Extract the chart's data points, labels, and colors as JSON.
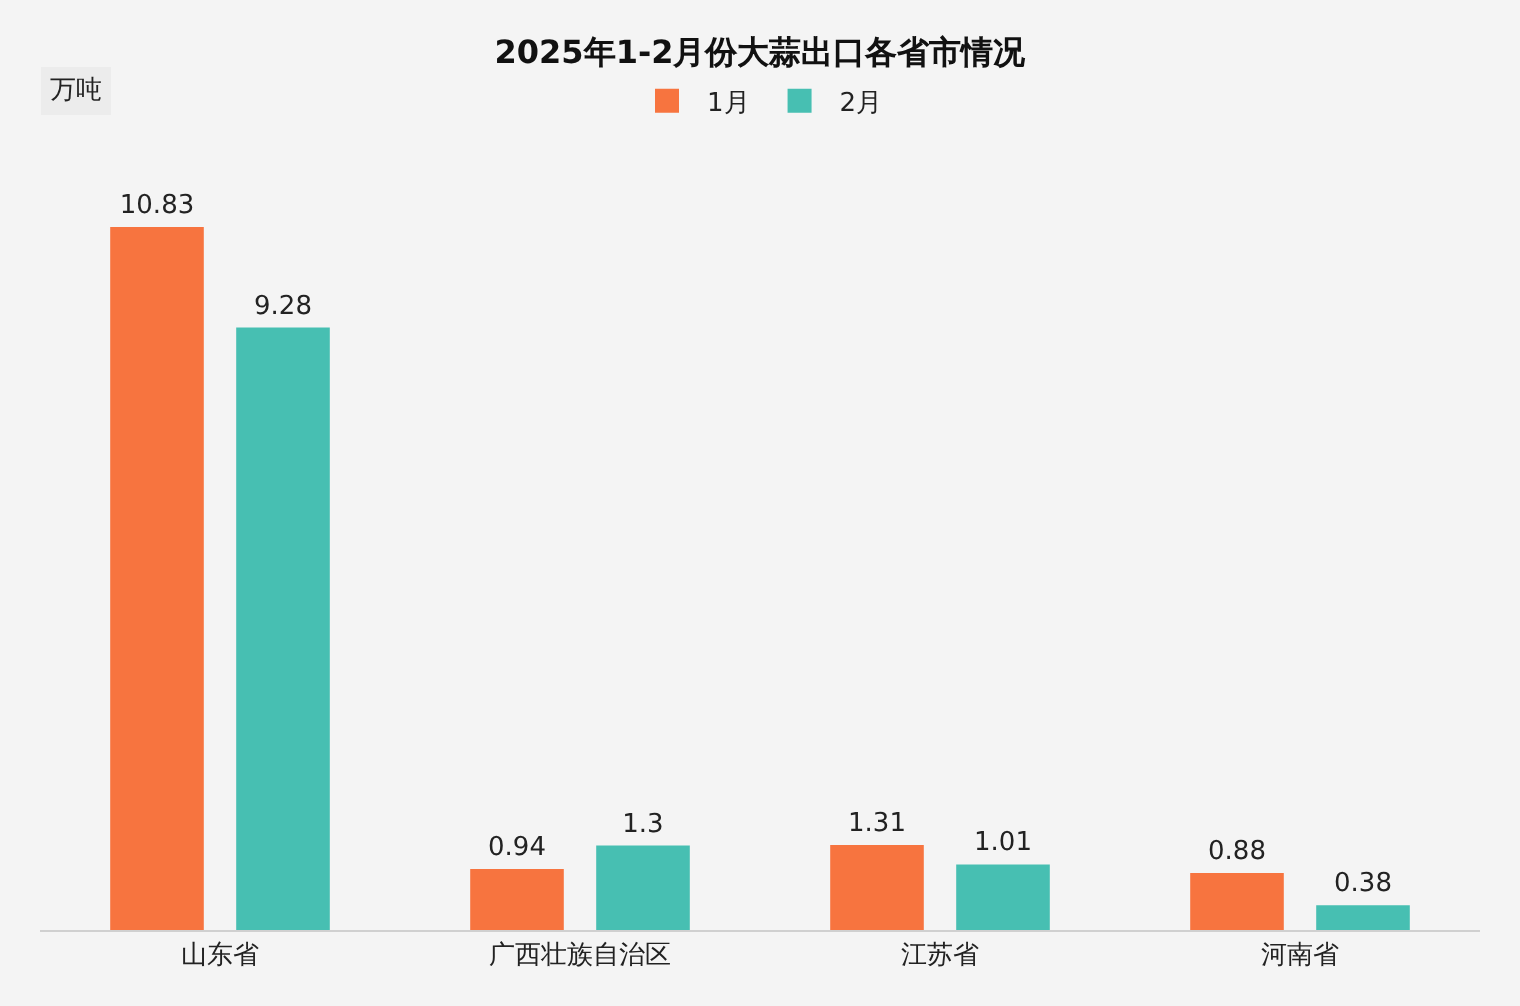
{
  "chart_data": {
    "type": "bar",
    "title": "2025年1-2月份大蒜出口各省市情况",
    "ylabel": "万吨",
    "categories": [
      "山东省",
      "广西壮族自治区",
      "江苏省",
      "河南省"
    ],
    "series": [
      {
        "name": "1月",
        "color": "#f7743f",
        "values": [
          10.83,
          0.94,
          1.31,
          0.88
        ]
      },
      {
        "name": "2月",
        "color": "#47bfb2",
        "values": [
          9.28,
          1.3,
          1.01,
          0.38
        ]
      }
    ],
    "data_labels": true,
    "legend": "top",
    "grid": false,
    "tick_labels": "x"
  }
}
